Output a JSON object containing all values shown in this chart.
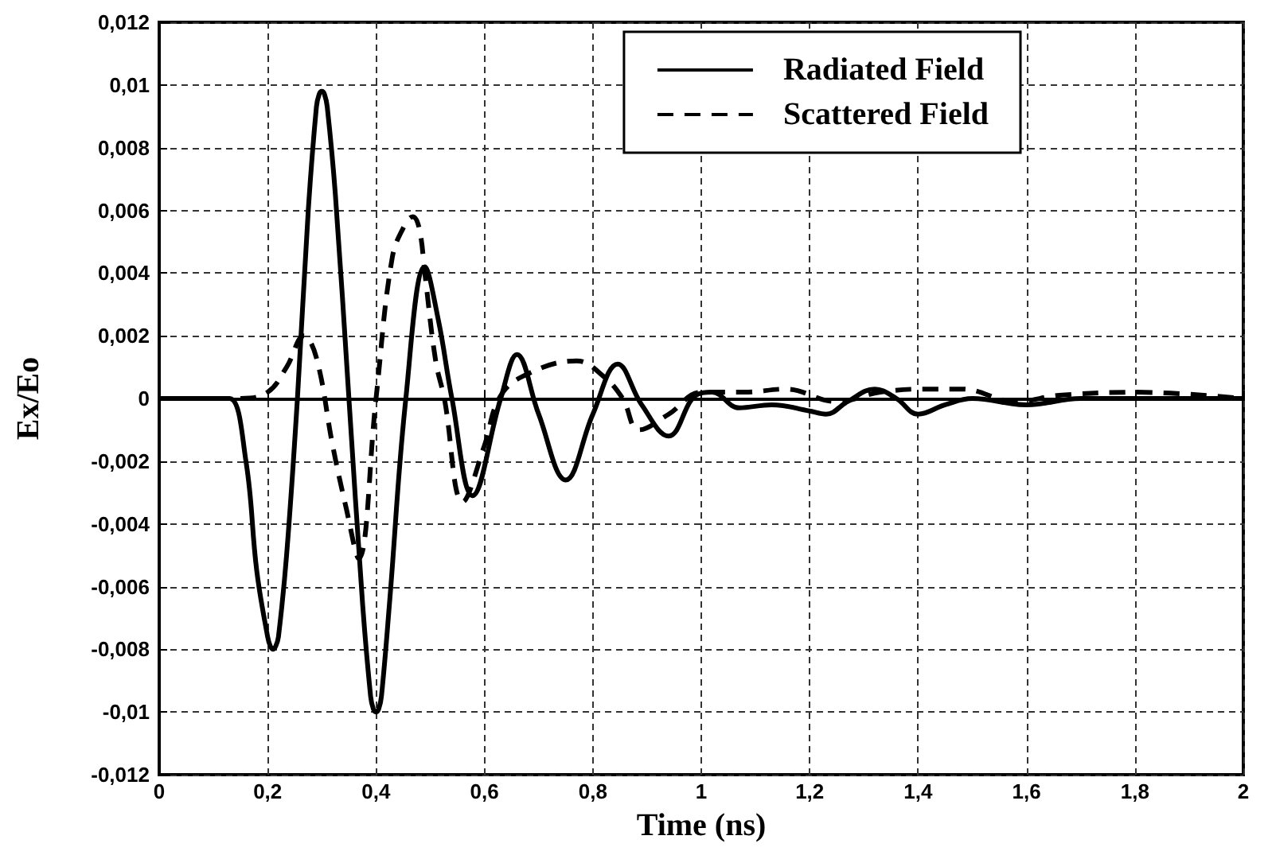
{
  "chart_data": {
    "type": "line",
    "xlabel": "Time (ns)",
    "ylabel": "Ex/Eo",
    "xlim": [
      0,
      2
    ],
    "xticks": [
      0,
      {
        "value": 0.2,
        "label": "0,2"
      },
      {
        "value": 0.4,
        "label": "0,4"
      },
      {
        "value": 0.6,
        "label": "0,6"
      },
      {
        "value": 0.8,
        "label": "0,8"
      },
      1,
      {
        "value": 1.2,
        "label": "1,2"
      },
      {
        "value": 1.4,
        "label": "1,4"
      },
      {
        "value": 1.6,
        "label": "1,6"
      },
      {
        "value": 1.8,
        "label": "1,8"
      },
      2
    ],
    "ylim": [
      -0.012,
      0.012
    ],
    "yticks": [
      {
        "value": -0.012,
        "label": "-0,012"
      },
      {
        "value": -0.01,
        "label": "-0,01"
      },
      {
        "value": -0.008,
        "label": "-0,008"
      },
      {
        "value": -0.006,
        "label": "-0,006"
      },
      {
        "value": -0.004,
        "label": "-0,004"
      },
      {
        "value": -0.002,
        "label": "-0,002"
      },
      0,
      {
        "value": 0.002,
        "label": "0,002"
      },
      {
        "value": 0.004,
        "label": "0,004"
      },
      {
        "value": 0.006,
        "label": "0,006"
      },
      {
        "value": 0.008,
        "label": "0,008"
      },
      {
        "value": 0.01,
        "label": "0,01"
      },
      {
        "value": 0.012,
        "label": "0,012"
      }
    ],
    "grid": true,
    "legend": "top right",
    "marker": "none",
    "series": [
      {
        "name": "Radiated Field",
        "color": "#000000",
        "line_style": "solid",
        "x": [
          0,
          0.1,
          0.13,
          0.16,
          0.18,
          0.2,
          0.205,
          0.21,
          0.215,
          0.22,
          0.235,
          0.255,
          0.275,
          0.29,
          0.295,
          0.3,
          0.305,
          0.31,
          0.325,
          0.35,
          0.375,
          0.39,
          0.395,
          0.4,
          0.405,
          0.41,
          0.425,
          0.455,
          0.49,
          0.515,
          0.54,
          0.578,
          0.63,
          0.66,
          0.7,
          0.75,
          0.8,
          0.846,
          0.89,
          0.94,
          0.99,
          1.02,
          1.07,
          1.13,
          1.2,
          1.23,
          1.27,
          1.32,
          1.36,
          1.4,
          1.45,
          1.5,
          1.6,
          1.7,
          1.8,
          2
        ],
        "values": [
          0,
          0,
          0,
          -0.002,
          -0.0055,
          -0.0076,
          -0.0079,
          -0.008,
          -0.0079,
          -0.0076,
          -0.005,
          0,
          0.006,
          0.0093,
          0.0097,
          0.0098,
          0.0097,
          0.0093,
          0.0065,
          0,
          -0.0065,
          -0.0095,
          -0.0099,
          -0.01,
          -0.0099,
          -0.0095,
          -0.0065,
          0,
          0.0042,
          0.0025,
          0,
          -0.0031,
          0,
          0.0014,
          -0.0005,
          -0.0026,
          -0.0005,
          0.0011,
          -0.0002,
          -0.0012,
          0.0001,
          0.0002,
          -0.0003,
          -0.0002,
          -0.0004,
          -0.0005,
          -0.0001,
          0.0003,
          0,
          -0.0005,
          -0.0002,
          0,
          -0.0002,
          0,
          0,
          0
        ]
      },
      {
        "name": "Scattered Field",
        "color": "#000000",
        "line_style": "dashed",
        "x": [
          0,
          0.15,
          0.2,
          0.235,
          0.267,
          0.29,
          0.32,
          0.345,
          0.368,
          0.4,
          0.43,
          0.455,
          0.468,
          0.48,
          0.49,
          0.51,
          0.526,
          0.56,
          0.6,
          0.627,
          0.67,
          0.77,
          0.82,
          0.855,
          0.885,
          0.94,
          1.0,
          1.08,
          1.155,
          1.25,
          1.33,
          1.41,
          1.48,
          1.58,
          1.66,
          1.8,
          2
        ],
        "values": [
          0,
          0,
          0.0002,
          0.001,
          0.002,
          0.0013,
          -0.0015,
          -0.0035,
          -0.0051,
          0,
          0.0045,
          0.0056,
          0.0058,
          0.0054,
          0.004,
          0.0012,
          0,
          -0.0033,
          -0.0015,
          0,
          0.0007,
          0.0012,
          0.0007,
          0,
          -0.001,
          -0.0005,
          0.0002,
          0.0002,
          0.0003,
          -0.0001,
          0.0002,
          0.0003,
          0.0003,
          -0.0001,
          0.0001,
          0.0002,
          0
        ]
      }
    ]
  }
}
